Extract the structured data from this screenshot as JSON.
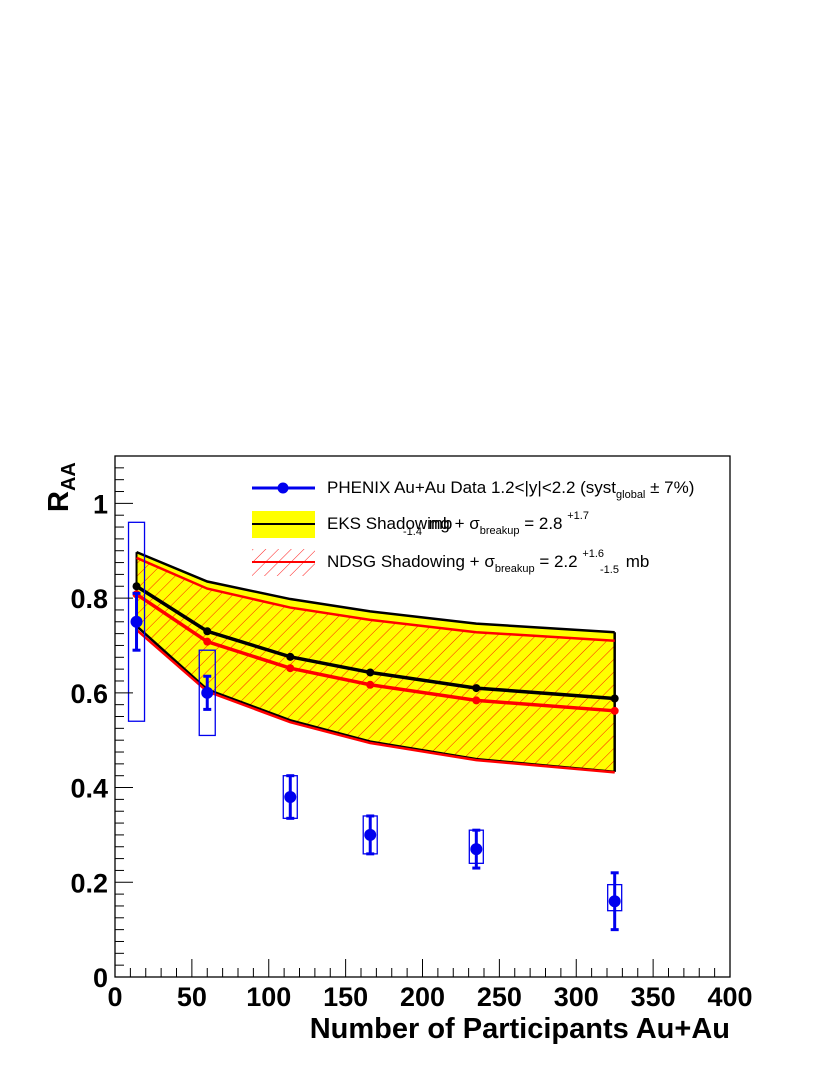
{
  "chart_data": {
    "type": "line",
    "title": "",
    "xlabel": "Number of Participants Au+Au",
    "ylabel": {
      "main": "R",
      "sub": "AA"
    },
    "xlim": [
      0,
      400
    ],
    "ylim": [
      0,
      1.1
    ],
    "x_ticks": [
      0,
      50,
      100,
      150,
      200,
      250,
      300,
      350,
      400
    ],
    "x_tick_labels": [
      "0",
      "50",
      "100",
      "150",
      "200",
      "250",
      "300",
      "350",
      "400"
    ],
    "y_ticks": [
      0,
      0.2,
      0.4,
      0.6,
      0.8,
      1
    ],
    "y_tick_labels": [
      "0",
      "0.2",
      "0.4",
      "0.6",
      "0.8",
      "1"
    ],
    "grid": false,
    "legend_position": "top-right",
    "legend": {
      "data": {
        "text": "PHENIX Au+Au Data 1.2<|y|<2.2 (syst",
        "sub": "global",
        "tail": " ± 7%)"
      },
      "eks": {
        "text": "EKS Shadowing + σ",
        "sub": "breakup",
        "mid": " = 2.8 ",
        "sup_err": "+1.7",
        "sub_err": "-1.4",
        "unit": " mb"
      },
      "ndsg": {
        "text": "NDSG Shadowing + σ",
        "sub": "breakup",
        "mid": " = 2.2 ",
        "sup_err": "+1.6",
        "sub_err": "-1.5",
        "unit": " mb"
      }
    },
    "data_series": {
      "name": "PHENIX Au+Au Data 1.2<|y|<2.2",
      "color": "#0000ee",
      "x": [
        14,
        60,
        114,
        166,
        235,
        325
      ],
      "y": [
        0.75,
        0.6,
        0.38,
        0.3,
        0.27,
        0.16
      ],
      "stat_err": [
        0.06,
        0.035,
        0.045,
        0.04,
        0.04,
        0.06
      ],
      "syst_low": [
        0.54,
        0.51,
        0.335,
        0.26,
        0.24,
        0.14
      ],
      "syst_high": [
        0.96,
        0.69,
        0.425,
        0.34,
        0.31,
        0.195
      ]
    },
    "eks_band": {
      "name": "EKS Shadowing",
      "fill_color": "#ffff00",
      "line_color": "#000000",
      "x": [
        14,
        60,
        114,
        166,
        235,
        325
      ],
      "central": [
        0.825,
        0.73,
        0.676,
        0.643,
        0.61,
        0.588
      ],
      "upper": [
        0.897,
        0.835,
        0.798,
        0.772,
        0.746,
        0.728
      ],
      "lower": [
        0.741,
        0.607,
        0.542,
        0.497,
        0.46,
        0.433
      ]
    },
    "ndsg_band": {
      "name": "NDSG Shadowing",
      "line_color": "#ff0000",
      "hatch_color": "#ff0000",
      "x": [
        14,
        60,
        114,
        166,
        235,
        325
      ],
      "central": [
        0.808,
        0.708,
        0.652,
        0.617,
        0.584,
        0.562
      ],
      "upper": [
        0.885,
        0.82,
        0.78,
        0.754,
        0.728,
        0.71
      ],
      "lower": [
        0.733,
        0.603,
        0.538,
        0.494,
        0.458,
        0.432
      ]
    }
  }
}
